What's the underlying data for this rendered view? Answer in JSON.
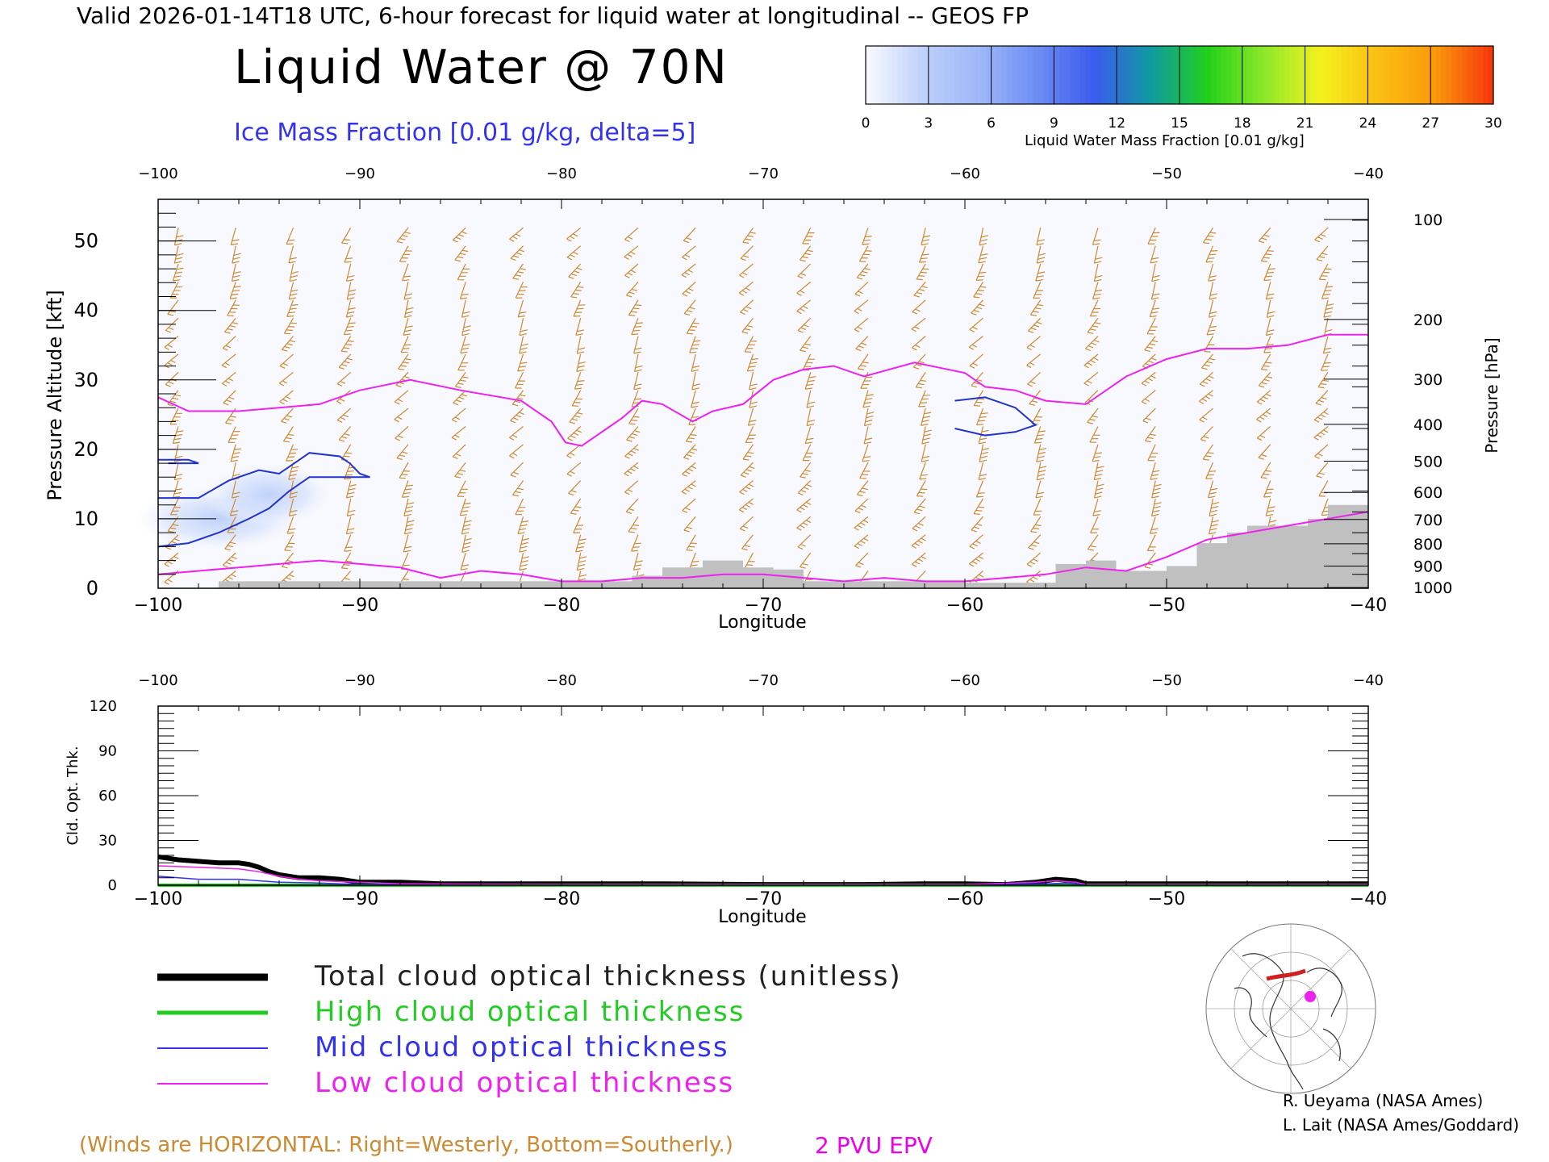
{
  "header": "Valid 2026-01-14T18 UTC, 6-hour forecast for liquid water at longitudinal -- GEOS FP",
  "title": "Liquid Water @ 70N",
  "subtitle": "Ice Mass Fraction [0.01 g/kg, delta=5]",
  "colorbar": {
    "label": "Liquid Water Mass Fraction [0.01 g/kg]",
    "ticks": [
      "0",
      "3",
      "6",
      "9",
      "12",
      "15",
      "18",
      "21",
      "24",
      "27",
      "30"
    ],
    "colors": [
      "#f6f8fe",
      "#bcd0fb",
      "#9cb6f8",
      "#6c8cf4",
      "#3b5bee",
      "#0f9aa0",
      "#22d11a",
      "#8ee82a",
      "#f4f21e",
      "#fbbf12",
      "#fb9a0c",
      "#f53a0c"
    ]
  },
  "winds_note": "(Winds are HORIZONTAL: Right=Westerly, Bottom=Southerly.)",
  "pvu_label": "2 PVU EPV",
  "credits": [
    "R. Ueyama (NASA Ames)",
    "L. Lait (NASA Ames/Goddard)"
  ],
  "legend": [
    {
      "label": "Total cloud optical thickness (unitless)",
      "color": "#000000"
    },
    {
      "label": "High cloud optical thickness",
      "color": "#22cc22"
    },
    {
      "label": "Mid cloud optical thickness",
      "color": "#3333ee"
    },
    {
      "label": "Low cloud optical thickness",
      "color": "#ee22ee"
    }
  ],
  "chart_data": [
    {
      "type": "area",
      "name": "cross-section",
      "xlabel": "Longitude",
      "ylabel": "Pressure Altitude [kft]",
      "ylabel_right": "Pressure [hPa]",
      "xlim": [
        -100,
        -40
      ],
      "ylim": [
        0,
        56
      ],
      "x_ticks": [
        "−100",
        "−90",
        "−80",
        "−70",
        "−60",
        "−50",
        "−40"
      ],
      "y_ticks": [
        "0",
        "10",
        "20",
        "30",
        "40",
        "50"
      ],
      "pressure_ticks": [
        {
          "label": "100",
          "kft": 53.1
        },
        {
          "label": "200",
          "kft": 38.7
        },
        {
          "label": "300",
          "kft": 30.1
        },
        {
          "label": "400",
          "kft": 23.6
        },
        {
          "label": "500",
          "kft": 18.3
        },
        {
          "label": "600",
          "kft": 13.8
        },
        {
          "label": "700",
          "kft": 9.9
        },
        {
          "label": "800",
          "kft": 6.4
        },
        {
          "label": "900",
          "kft": 3.2
        },
        {
          "label": "1000",
          "kft": 0.1
        }
      ],
      "epv_2pvu": {
        "x": [
          -100,
          -98.5,
          -96,
          -94,
          -92,
          -90,
          -87.5,
          -85,
          -82,
          -80.5,
          -79.8,
          -79,
          -77,
          -76,
          -75,
          -73.5,
          -72.5,
          -71,
          -69.5,
          -68,
          -66.5,
          -65,
          -62.5,
          -60,
          -59,
          -57.5,
          -56,
          -54,
          -52,
          -50,
          -48,
          -46,
          -44,
          -42,
          -40
        ],
        "y": [
          27.5,
          25.5,
          25.5,
          26,
          26.5,
          28.5,
          30,
          28.5,
          27,
          24,
          21,
          20.5,
          24.5,
          27,
          26.5,
          24,
          25.5,
          26.5,
          30,
          31.5,
          32,
          30.5,
          32.5,
          31,
          29,
          28.5,
          27,
          26.5,
          30.5,
          33,
          34.5,
          34.5,
          35,
          36.5,
          36.5
        ]
      },
      "epv_low": {
        "x": [
          -100,
          -98,
          -96,
          -94,
          -92,
          -90,
          -88,
          -86,
          -84,
          -82,
          -80,
          -78,
          -76,
          -74,
          -72,
          -70,
          -68,
          -66,
          -64,
          -62,
          -60,
          -58,
          -56,
          -54,
          -52,
          -50,
          -48,
          -46,
          -44,
          -42,
          -40
        ],
        "y": [
          2,
          2.5,
          3,
          3.5,
          4,
          3.5,
          3,
          1.5,
          2.5,
          2,
          1,
          1,
          1.5,
          1.5,
          2,
          2,
          1.5,
          1,
          1.5,
          1,
          1,
          1.5,
          2,
          3,
          2.5,
          4.5,
          7,
          8,
          9,
          10,
          11
        ]
      },
      "surface": {
        "x": [
          -100,
          -97,
          -97,
          -86,
          -86,
          -78,
          -78,
          -76.5,
          -76.5,
          -75,
          -75,
          -73,
          -73,
          -71,
          -71,
          -69.5,
          -69.5,
          -68,
          -68,
          -60,
          -60,
          -55.5,
          -55.5,
          -54,
          -54,
          -52.5,
          -52.5,
          -50,
          -50,
          -48.5,
          -48.5,
          -47,
          -47,
          -46,
          -46,
          -43,
          -43,
          -42,
          -42,
          -40
        ],
        "y": [
          0,
          0,
          1,
          1,
          1,
          1,
          1,
          1,
          1.8,
          1.8,
          3,
          3,
          4,
          4,
          3,
          3,
          2.7,
          2.7,
          1,
          1,
          0.8,
          0.8,
          3.5,
          3.5,
          4,
          4,
          2.5,
          2.5,
          3.2,
          3.2,
          6.5,
          6.5,
          8,
          8,
          9,
          9,
          10,
          10,
          12,
          12
        ]
      },
      "ice_contour_5": [
        {
          "x": [
            -100,
            -98,
            -96.5,
            -95,
            -94,
            -93.5,
            -92.5,
            -91,
            -90.5,
            -90,
            -89.5,
            -91,
            -92.5,
            -93.5,
            -94.5,
            -95.5,
            -97,
            -98.5,
            -100
          ],
          "y": [
            13,
            13,
            15.5,
            17,
            16.5,
            17.5,
            19.5,
            19,
            18,
            16.5,
            16,
            16,
            16,
            14,
            11.5,
            10,
            8,
            6.5,
            6
          ]
        },
        {
          "x": [
            -100,
            -98.5,
            -98,
            -99.5
          ],
          "y": [
            18.5,
            18.5,
            18,
            18
          ]
        },
        {
          "x": [
            -60.5,
            -59,
            -57.5,
            -56.5,
            -57.5,
            -59,
            -60.5
          ],
          "y": [
            27,
            27.5,
            26,
            23.5,
            22.5,
            22,
            23
          ]
        }
      ],
      "liquid_water_blobs": [
        {
          "lon": -97,
          "kft": 10,
          "value": 3
        },
        {
          "lon": -94.5,
          "kft": 13.5,
          "value": 2
        }
      ]
    },
    {
      "type": "line",
      "name": "optical-thickness",
      "xlabel": "Longitude",
      "ylabel": "Cld. Opt. Thk.",
      "xlim": [
        -100,
        -40
      ],
      "ylim": [
        0,
        120
      ],
      "x_ticks": [
        "−100",
        "−90",
        "−80",
        "−70",
        "−60",
        "−50",
        "−40"
      ],
      "y_ticks": [
        "0",
        "30",
        "60",
        "90",
        "120"
      ],
      "series": [
        {
          "name": "Total cloud optical thickness (unitless)",
          "x": [
            -100,
            -99,
            -98,
            -97,
            -96,
            -95.5,
            -95,
            -94.5,
            -94,
            -93,
            -92,
            -91,
            -90,
            -88,
            -86,
            -84,
            -80,
            -75,
            -70,
            -65,
            -62,
            -60,
            -58,
            -56.5,
            -55.5,
            -54.5,
            -54,
            -52,
            -45,
            -40
          ],
          "y": [
            19,
            17,
            16,
            15,
            15,
            14,
            12,
            9,
            7,
            5,
            5,
            4,
            2,
            2,
            1,
            1,
            1,
            1,
            0.5,
            0.5,
            1,
            1,
            0.5,
            2,
            4,
            3,
            1,
            1,
            1,
            1
          ]
        },
        {
          "name": "High cloud optical thickness",
          "x": [
            -100,
            -40
          ],
          "y": [
            0,
            0
          ]
        },
        {
          "name": "Mid cloud optical thickness",
          "x": [
            -100,
            -98,
            -96,
            -95,
            -94,
            -92,
            -90,
            -86,
            -80,
            -60,
            -56,
            -55,
            -54,
            -50,
            -40
          ],
          "y": [
            6,
            4,
            4,
            3,
            2,
            1.5,
            0.5,
            0.5,
            0.3,
            0.3,
            1,
            1.5,
            0.5,
            0.3,
            0.3
          ]
        },
        {
          "name": "Low cloud optical thickness",
          "x": [
            -100,
            -98,
            -96,
            -95,
            -94,
            -93,
            -92,
            -90,
            -88,
            -80,
            -70,
            -60,
            -56.5,
            -55.5,
            -54.5,
            -54,
            -50,
            -40
          ],
          "y": [
            13,
            12,
            11,
            9,
            6,
            4,
            3,
            2,
            1,
            0.5,
            0.5,
            0.5,
            2,
            3,
            2,
            0.5,
            0.5,
            0.5
          ]
        }
      ]
    }
  ]
}
